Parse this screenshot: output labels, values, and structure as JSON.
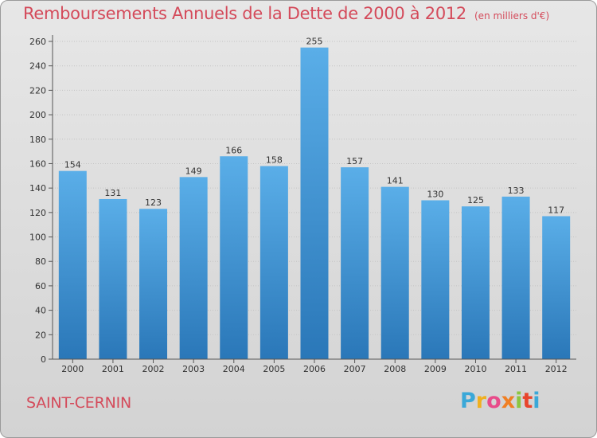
{
  "header": {
    "title": "Remboursements Annuels de la Dette de 2000 à 2012",
    "unit": "(en milliers d'€)"
  },
  "footer": {
    "commune": "SAINT-CERNIN",
    "logo_letters": [
      {
        "ch": "P",
        "color": "#3aa8d8"
      },
      {
        "ch": "r",
        "color": "#f0b01f"
      },
      {
        "ch": "o",
        "color": "#e84b8a"
      },
      {
        "ch": "x",
        "color": "#f07f24"
      },
      {
        "ch": "i",
        "color": "#8cc63f"
      },
      {
        "ch": "t",
        "color": "#e8452c"
      },
      {
        "ch": "i",
        "color": "#3aa8d8"
      }
    ]
  },
  "chart_data": {
    "type": "bar",
    "title": "Remboursements Annuels de la Dette de 2000 à 2012",
    "categories": [
      "2000",
      "2001",
      "2002",
      "2003",
      "2004",
      "2005",
      "2006",
      "2007",
      "2008",
      "2009",
      "2010",
      "2011",
      "2012"
    ],
    "values": [
      154,
      131,
      123,
      149,
      166,
      158,
      255,
      157,
      141,
      130,
      125,
      133,
      117
    ],
    "ylim": [
      0,
      260
    ],
    "yticks": [
      0,
      20,
      40,
      60,
      80,
      100,
      120,
      140,
      160,
      180,
      200,
      220,
      240,
      260
    ],
    "grid": true,
    "bar_color_top": "#5aaee8",
    "bar_color_bottom": "#2a77b8"
  }
}
